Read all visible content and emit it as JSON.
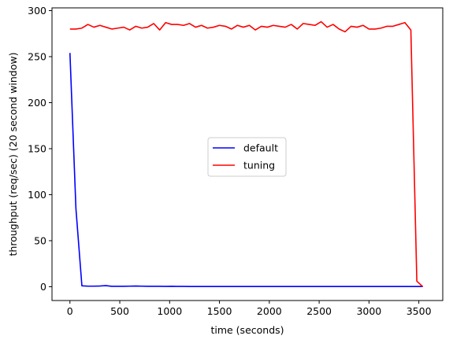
{
  "chart_data": {
    "type": "line",
    "title": "",
    "xlabel": "time (seconds)",
    "ylabel": "throughput (req/sec) (20 second window)",
    "xlim": [
      -180,
      3740
    ],
    "ylim": [
      -15,
      303
    ],
    "xticks": [
      0,
      500,
      1000,
      1500,
      2000,
      2500,
      3000,
      3500
    ],
    "yticks": [
      0,
      50,
      100,
      150,
      200,
      250,
      300
    ],
    "grid": false,
    "legend_position": "center",
    "series": [
      {
        "name": "default",
        "color": "#0000ff",
        "x": [
          0,
          60,
          120,
          180,
          240,
          300,
          360,
          420,
          480,
          540,
          600,
          660,
          720,
          780,
          840,
          900,
          960,
          1020,
          1080,
          1140,
          1200,
          1500,
          2000,
          2500,
          3000,
          3500,
          3540
        ],
        "y": [
          254,
          85,
          1,
          0.6,
          0.6,
          0.8,
          1.2,
          0.4,
          0.4,
          0.4,
          0.6,
          0.8,
          0.6,
          0.4,
          0.4,
          0.4,
          0.3,
          0.4,
          0.3,
          0.3,
          0.2,
          0.2,
          0.2,
          0.2,
          0.2,
          0.2,
          0.2
        ]
      },
      {
        "name": "tuning",
        "color": "#ff0000",
        "x": [
          0,
          60,
          120,
          180,
          240,
          300,
          360,
          420,
          480,
          540,
          600,
          660,
          720,
          780,
          840,
          900,
          960,
          1020,
          1080,
          1140,
          1200,
          1260,
          1320,
          1380,
          1440,
          1500,
          1560,
          1620,
          1680,
          1740,
          1800,
          1860,
          1920,
          1980,
          2040,
          2100,
          2160,
          2220,
          2280,
          2340,
          2400,
          2460,
          2520,
          2580,
          2640,
          2700,
          2760,
          2820,
          2880,
          2940,
          3000,
          3060,
          3120,
          3180,
          3240,
          3300,
          3360,
          3420,
          3480,
          3540
        ],
        "y": [
          280,
          280,
          281,
          285,
          282,
          284,
          282,
          280,
          281,
          282,
          279,
          283,
          281,
          282,
          286,
          279,
          287,
          285,
          285,
          284,
          286,
          282,
          284,
          281,
          282,
          284,
          283,
          280,
          284,
          282,
          284,
          279,
          283,
          282,
          284,
          283,
          282,
          285,
          280,
          286,
          285,
          284,
          288,
          282,
          285,
          280,
          277,
          283,
          282,
          284,
          280,
          280,
          281,
          283,
          283,
          285,
          287,
          279,
          6,
          0
        ]
      }
    ]
  }
}
